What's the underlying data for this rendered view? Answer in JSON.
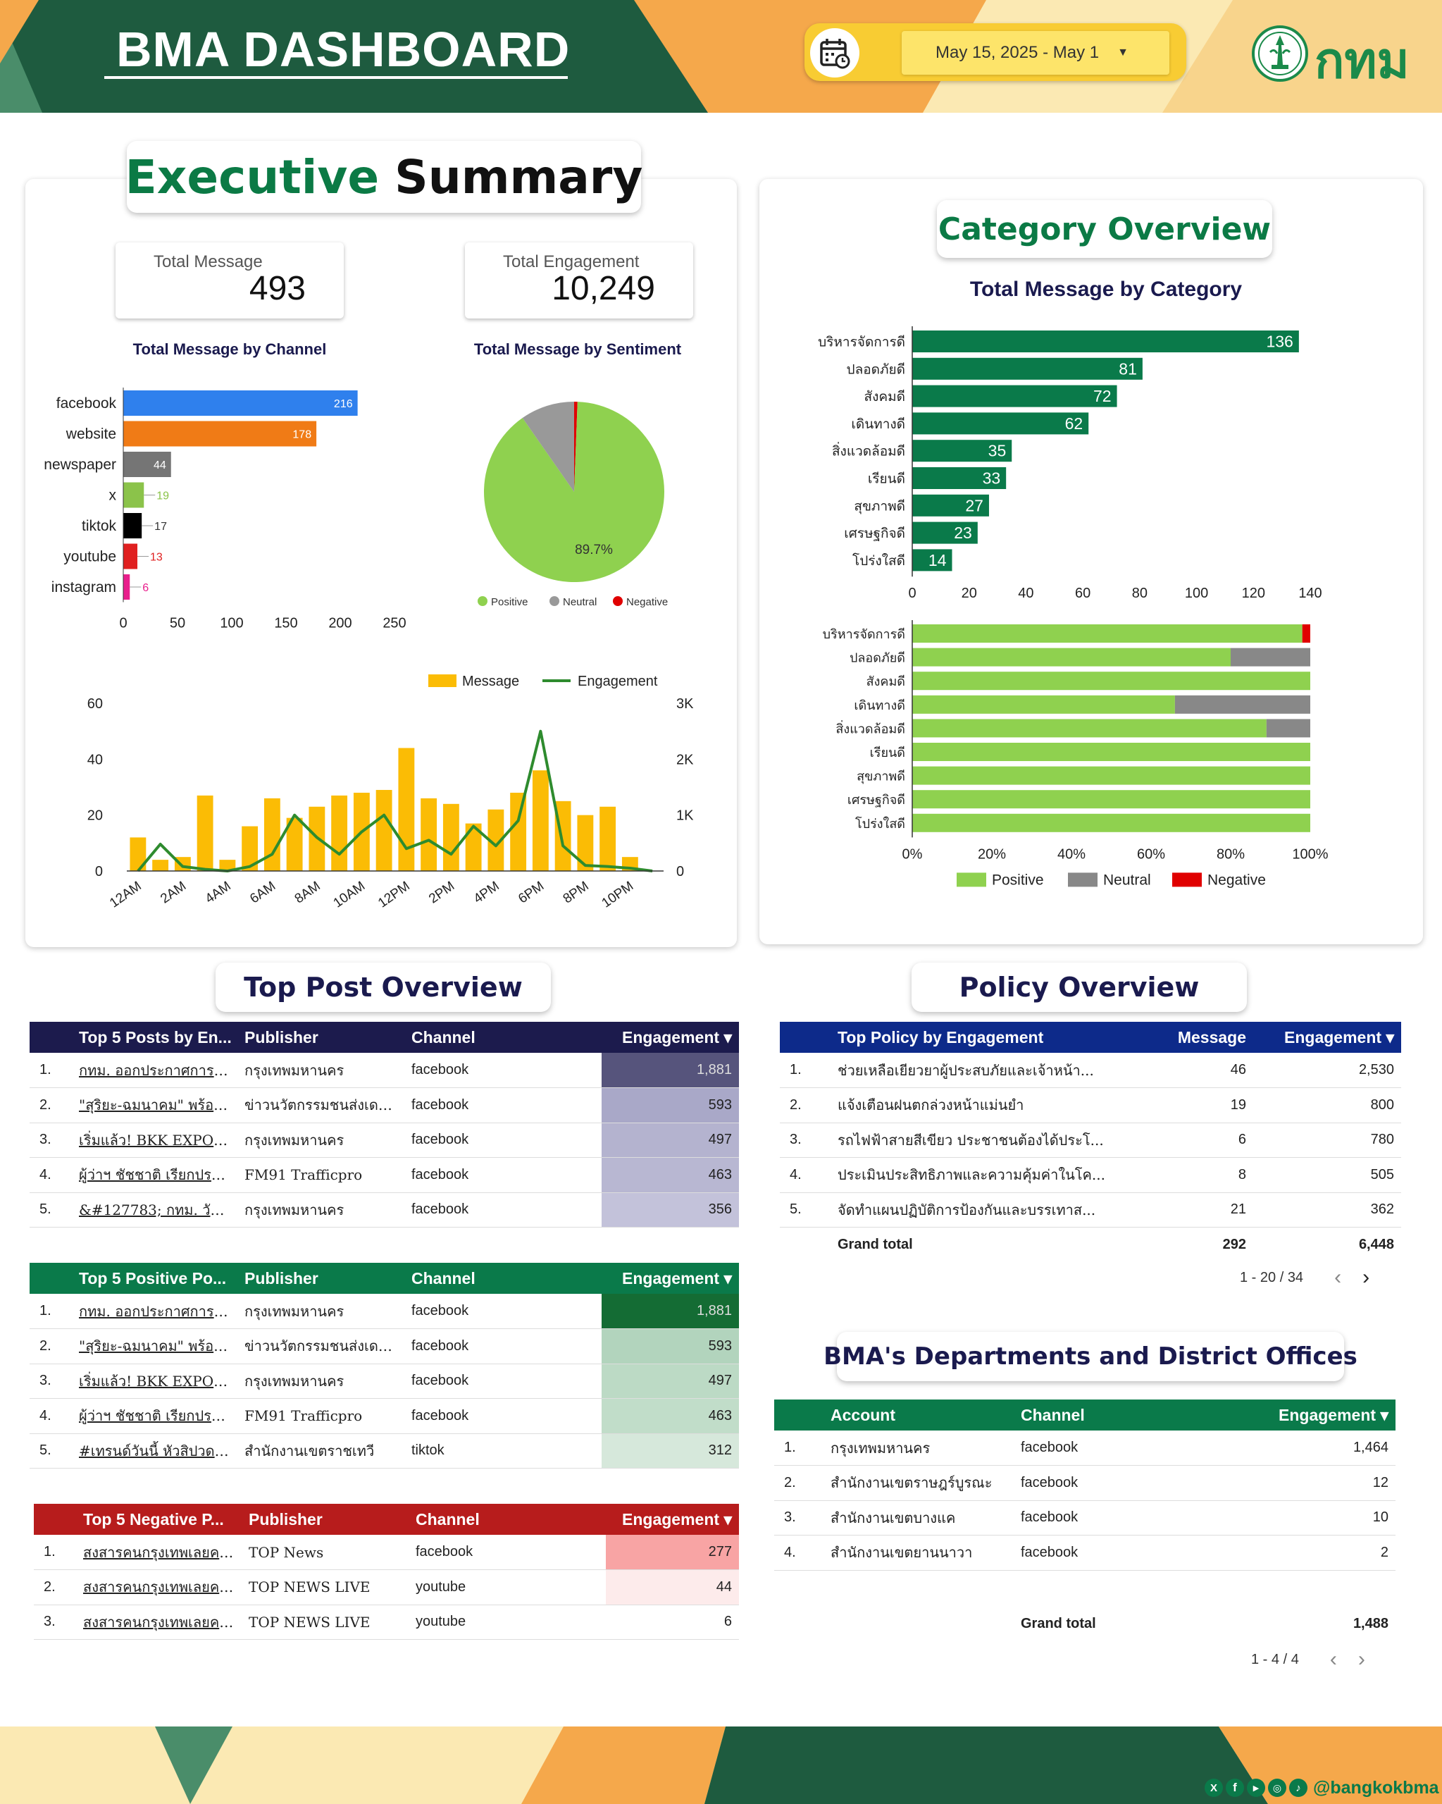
{
  "header": {
    "title": "BMA DASHBOARD",
    "date_range": "May 15, 2025 - May 1",
    "logo_text": "กทม",
    "colors": {
      "dark_green": "#1e5b3f",
      "orange": "#f5a84b",
      "cream": "#fbe9b3",
      "yellow": "#f8cc33"
    }
  },
  "executive": {
    "title_part1": "Executive",
    "title_part2": "Summary",
    "kpi_total_message_label": "Total Message",
    "kpi_total_message_value": "493",
    "kpi_total_engagement_label": "Total Engagement",
    "kpi_total_engagement_value": "10,249"
  },
  "category": {
    "title": "Category Overview"
  },
  "top_post": {
    "title": "Top Post Overview"
  },
  "policy_section": {
    "title": "Policy Overview"
  },
  "depts_section": {
    "title": "BMA's Departments and District Offices"
  },
  "chart_data": [
    {
      "type": "bar",
      "orientation": "horizontal",
      "title": "Total Message by Channel",
      "categories": [
        "facebook",
        "website",
        "newspaper",
        "x",
        "tiktok",
        "youtube",
        "instagram"
      ],
      "values": [
        216,
        178,
        44,
        19,
        17,
        13,
        6
      ],
      "colors": [
        "#2f80ed",
        "#f07b16",
        "#757575",
        "#8bc34a",
        "#000000",
        "#e02020",
        "#e91e8c"
      ],
      "xlim": [
        0,
        250
      ],
      "xticks": [
        0,
        50,
        100,
        150,
        200,
        250
      ]
    },
    {
      "type": "pie",
      "title": "Total Message by Sentiment",
      "labels": [
        "Positive",
        "Neutral",
        "Negative"
      ],
      "values": [
        89.7,
        9.7,
        0.6
      ],
      "colors": [
        "#8fd14f",
        "#999999",
        "#e00000"
      ],
      "label_text": "89.7%",
      "legend": "bottom"
    },
    {
      "type": "bar+line",
      "title": "",
      "x": [
        "12AM",
        "1AM",
        "2AM",
        "3AM",
        "4AM",
        "5AM",
        "6AM",
        "7AM",
        "8AM",
        "9AM",
        "10AM",
        "11AM",
        "12PM",
        "1PM",
        "2PM",
        "3PM",
        "4PM",
        "5PM",
        "6PM",
        "7PM",
        "8PM",
        "9PM",
        "10PM",
        "11PM"
      ],
      "x_tick_labels": [
        "12AM",
        "2AM",
        "4AM",
        "6AM",
        "8AM",
        "10AM",
        "12PM",
        "2PM",
        "4PM",
        "6PM",
        "8PM",
        "10PM"
      ],
      "series": [
        {
          "name": "Message",
          "kind": "bar",
          "axis": "left",
          "color": "#fbbc05",
          "values": [
            12,
            4,
            5,
            27,
            4,
            16,
            26,
            19,
            23,
            27,
            28,
            29,
            44,
            26,
            24,
            17,
            22,
            28,
            36,
            25,
            20,
            23,
            5,
            0
          ]
        },
        {
          "name": "Engagement",
          "kind": "line",
          "axis": "right",
          "color": "#2e8b2e",
          "values": [
            0,
            480,
            80,
            30,
            0,
            80,
            300,
            1000,
            600,
            300,
            700,
            1000,
            400,
            550,
            300,
            800,
            450,
            900,
            2500,
            450,
            100,
            80,
            50,
            0
          ]
        }
      ],
      "ylim_left": [
        0,
        60
      ],
      "yticks_left": [
        0,
        20,
        40,
        60
      ],
      "ylim_right": [
        0,
        3000
      ],
      "yticks_right": [
        "0",
        "1K",
        "2K",
        "3K"
      ],
      "legend": "top-right"
    },
    {
      "type": "bar",
      "orientation": "horizontal",
      "title": "Total Message by Category",
      "categories": [
        "บริหารจัดการดี",
        "ปลอดภัยดี",
        "สังคมดี",
        "เดินทางดี",
        "สิ่งแวดล้อมดี",
        "เรียนดี",
        "สุขภาพดี",
        "เศรษฐกิจดี",
        "โปร่งใสดี"
      ],
      "values": [
        136,
        81,
        72,
        62,
        35,
        33,
        27,
        23,
        14
      ],
      "color": "#0a7a4a",
      "xlim": [
        0,
        140
      ],
      "xticks": [
        0,
        20,
        40,
        60,
        80,
        100,
        120,
        140
      ]
    },
    {
      "type": "bar",
      "orientation": "horizontal",
      "stacked": "percent",
      "title": "",
      "categories": [
        "บริหารจัดการดี",
        "ปลอดภัยดี",
        "สังคมดี",
        "เดินทางดี",
        "สิ่งแวดล้อมดี",
        "เรียนดี",
        "สุขภาพดี",
        "เศรษฐกิจดี",
        "โปร่งใสดี"
      ],
      "series": [
        {
          "name": "Positive",
          "color": "#8fd14f",
          "values": [
            98,
            80,
            100,
            66,
            89,
            100,
            100,
            100,
            100
          ]
        },
        {
          "name": "Neutral",
          "color": "#888888",
          "values": [
            0,
            20,
            0,
            34,
            11,
            0,
            0,
            0,
            0
          ]
        },
        {
          "name": "Negative",
          "color": "#e00000",
          "values": [
            2,
            0,
            0,
            0,
            0,
            0,
            0,
            0,
            0
          ]
        }
      ],
      "xticks": [
        "0%",
        "20%",
        "40%",
        "60%",
        "80%",
        "100%"
      ],
      "legend": "bottom"
    }
  ],
  "tables": {
    "top_engagement": {
      "headers": [
        "Top 5 Posts by En...",
        "Publisher",
        "Channel",
        "Engagement ▾"
      ],
      "rows": [
        [
          "1.",
          "กทม. ออกประกาศการสิ้นสุ...",
          "กรุงเทพมหานคร",
          "facebook",
          "1,881"
        ],
        [
          "2.",
          "\"สุริยะ-ฉมนาคม\" พร้อมมา...",
          "ข่าวนวัตกรรมชนส่งเดลินิว...",
          "facebook",
          "593"
        ],
        [
          "3.",
          "เริ่มแล้ว! BKK EXPO 20...",
          "กรุงเทพมหานคร",
          "facebook",
          "497"
        ],
        [
          "4.",
          "ผู้ว่าฯ ชัชชาติ เรียกประชุม...",
          "FM91 Trafficpro",
          "facebook",
          "463"
        ],
        [
          "5.",
          "&#127783; กทม. วันนี้ ...",
          "กรุงเทพมหานคร",
          "facebook",
          "356"
        ]
      ]
    },
    "top_positive": {
      "headers": [
        "Top 5 Positive Po...",
        "Publisher",
        "Channel",
        "Engagement ▾"
      ],
      "rows": [
        [
          "1.",
          "กทม. ออกประกาศการสิ้นสุ...",
          "กรุงเทพมหานคร",
          "facebook",
          "1,881"
        ],
        [
          "2.",
          "\"สุริยะ-ฉมนาคม\" พร้อมมา...",
          "ข่าวนวัตกรรมชนส่งเดลินิว...",
          "facebook",
          "593"
        ],
        [
          "3.",
          "เริ่มแล้ว! BKK EXPO 20...",
          "กรุงเทพมหานคร",
          "facebook",
          "497"
        ],
        [
          "4.",
          "ผู้ว่าฯ ชัชชาติ เรียกประชุม...",
          "FM91 Trafficpro",
          "facebook",
          "463"
        ],
        [
          "5.",
          "#เทรนด์วันนี้ หัวสิปวด!!!อ...",
          "สำนักงานเขตราชเทวี",
          "tiktok",
          "312"
        ]
      ]
    },
    "top_negative": {
      "headers": [
        "Top 5 Negative P...",
        "Publisher",
        "Channel",
        "Engagement ▾"
      ],
      "rows": [
        [
          "1.",
          "สงสารคนกรุงเทพเลยครับ!...",
          "TOP News",
          "facebook",
          "277"
        ],
        [
          "2.",
          "สงสารคนกรุงเทพเลยครับ!...",
          "TOP NEWS LIVE",
          "youtube",
          "44"
        ],
        [
          "3.",
          "สงสารคนกรุงเทพเลยครับ!...",
          "TOP NEWS LIVE",
          "youtube",
          "6"
        ]
      ]
    },
    "policy": {
      "headers": [
        "Top Policy by Engagement",
        "Message",
        "Engagement ▾"
      ],
      "rows": [
        [
          "1.",
          "ช่วยเหลือเยียวยาผู้ประสบภัยและเจ้าหน้า...",
          "46",
          "2,530"
        ],
        [
          "2.",
          "แจ้งเตือนฝนตกล่วงหน้าแม่นยำ",
          "19",
          "800"
        ],
        [
          "3.",
          "รถไฟฟ้าสายสีเขียว ประชาชนต้องได้ประโ...",
          "6",
          "780"
        ],
        [
          "4.",
          "ประเมินประสิทธิภาพและความคุ้มค่าในโค...",
          "8",
          "505"
        ],
        [
          "5.",
          "จัดทำแผนปฏิบัติการป้องกันและบรรเทาส...",
          "21",
          "362"
        ]
      ],
      "grand_total_label": "Grand total",
      "grand_total_message": "292",
      "grand_total_engagement": "6,448",
      "pager": "1 - 20 / 34"
    },
    "depts": {
      "headers": [
        "Account",
        "Channel",
        "Engagement ▾"
      ],
      "rows": [
        [
          "1.",
          "กรุงเทพมหานคร",
          "facebook",
          "1,464"
        ],
        [
          "2.",
          "สำนักงานเขตราษฎร์บูรณะ",
          "facebook",
          "12"
        ],
        [
          "3.",
          "สำนักงานเขตบางแค",
          "facebook",
          "10"
        ],
        [
          "4.",
          "สำนักงานเขตยานนาวา",
          "facebook",
          "2"
        ]
      ],
      "grand_total_label": "Grand total",
      "grand_total_engagement": "1,488",
      "pager": "1 - 4 / 4"
    }
  },
  "footer": {
    "social_handle": "@bangkokbma",
    "social_icons": [
      "x-icon",
      "facebook-icon",
      "youtube-icon",
      "instagram-icon",
      "tiktok-icon"
    ]
  }
}
